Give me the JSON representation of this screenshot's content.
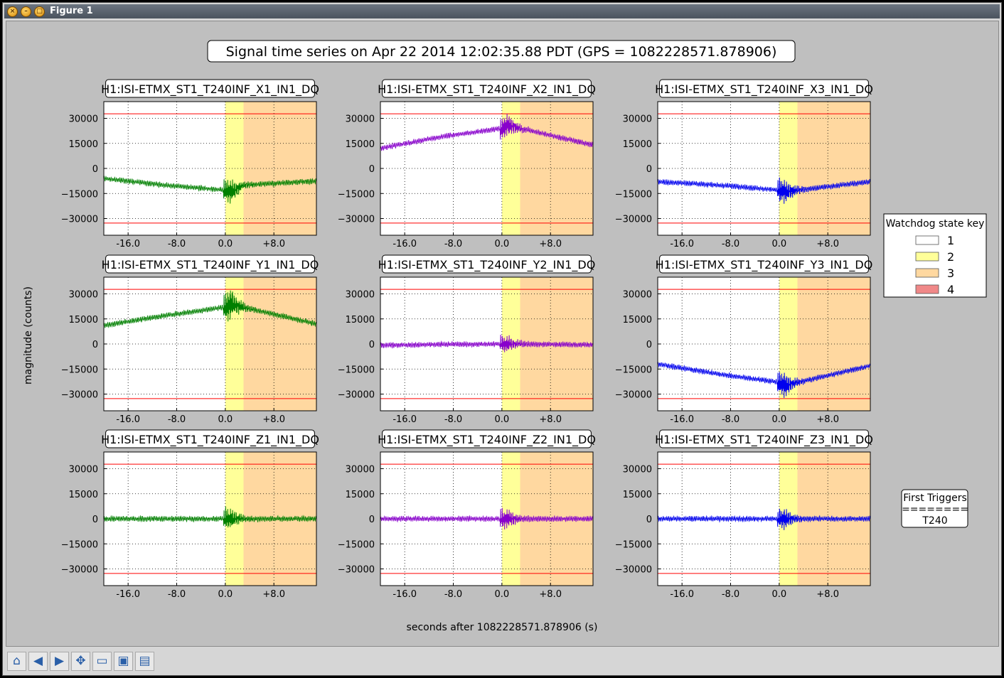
{
  "window": {
    "title": "Figure 1"
  },
  "toolbar": {
    "buttons": [
      {
        "name": "home-icon",
        "glyph": "⌂"
      },
      {
        "name": "back-icon",
        "glyph": "◀"
      },
      {
        "name": "forward-icon",
        "glyph": "▶"
      },
      {
        "name": "pan-icon",
        "glyph": "✥"
      },
      {
        "name": "zoom-icon",
        "glyph": "▭"
      },
      {
        "name": "configure-subplots-icon",
        "glyph": "▣"
      },
      {
        "name": "save-icon",
        "glyph": "▤"
      }
    ]
  },
  "figure": {
    "suptitle": "Signal time series on Apr 22 2014 12:02:35.88 PDT (GPS = 1082228571.878906)",
    "ylabel": "magnitude (counts)",
    "xlabel": "seconds after 1082228571.878906 (s)",
    "legend": {
      "title": "Watchdog state key",
      "entries": [
        {
          "label": "1",
          "color": "#ffffff"
        },
        {
          "label": "2",
          "color": "#ffff99"
        },
        {
          "label": "3",
          "color": "#ffd8a0"
        },
        {
          "label": "4",
          "color": "#f08888"
        }
      ]
    },
    "first_triggers": {
      "title": "First Triggers",
      "separator": "========",
      "value": "T240"
    }
  },
  "chart_data": [
    {
      "type": "line",
      "title": "H1:ISI-ETMX_ST1_T240INF_X1_IN1_DQ",
      "color": "#008000",
      "xlim": [
        -20,
        15
      ],
      "ylim": [
        -40000,
        40000
      ],
      "xticks": [
        "-16.0",
        "-8.0",
        "0.0",
        "+8.0"
      ],
      "yticks": [
        "30000",
        "15000",
        "0",
        "−15000",
        "−30000"
      ],
      "threshold": [
        32700,
        -32700
      ],
      "state_bands": [
        {
          "state": 2,
          "x": [
            0,
            3
          ]
        },
        {
          "state": 3,
          "x": [
            3,
            15
          ]
        }
      ],
      "x": [
        -20,
        -10,
        0,
        1,
        3,
        15
      ],
      "y": [
        -6000,
        -10000,
        -13000,
        -14000,
        -10000,
        -7500
      ],
      "burst_amplitude": 7000
    },
    {
      "type": "line",
      "title": "H1:ISI-ETMX_ST1_T240INF_X2_IN1_DQ",
      "color": "#8800cc",
      "xlim": [
        -20,
        15
      ],
      "ylim": [
        -40000,
        40000
      ],
      "xticks": [
        "-16.0",
        "-8.0",
        "0.0",
        "+8.0"
      ],
      "yticks": [
        "30000",
        "15000",
        "0",
        "−15000",
        "−30000"
      ],
      "threshold": [
        32700,
        -32700
      ],
      "state_bands": [
        {
          "state": 2,
          "x": [
            0,
            3
          ]
        },
        {
          "state": 3,
          "x": [
            3,
            15
          ]
        }
      ],
      "x": [
        -20,
        -10,
        0,
        1,
        3,
        15
      ],
      "y": [
        12000,
        19000,
        24000,
        26000,
        24000,
        14000
      ],
      "burst_amplitude": 7500
    },
    {
      "type": "line",
      "title": "H1:ISI-ETMX_ST1_T240INF_X3_IN1_DQ",
      "color": "#0000ee",
      "xlim": [
        -20,
        15
      ],
      "ylim": [
        -40000,
        40000
      ],
      "xticks": [
        "-16.0",
        "-8.0",
        "0.0",
        "+8.0"
      ],
      "yticks": [
        "30000",
        "15000",
        "0",
        "−15000",
        "−30000"
      ],
      "threshold": [
        32700,
        -32700
      ],
      "state_bands": [
        {
          "state": 2,
          "x": [
            0,
            3
          ]
        },
        {
          "state": 3,
          "x": [
            3,
            15
          ]
        }
      ],
      "x": [
        -20,
        -10,
        0,
        1,
        3,
        15
      ],
      "y": [
        -8000,
        -10000,
        -13000,
        -14000,
        -13000,
        -8000
      ],
      "burst_amplitude": 7500
    },
    {
      "type": "line",
      "title": "H1:ISI-ETMX_ST1_T240INF_Y1_IN1_DQ",
      "color": "#008000",
      "xlim": [
        -20,
        15
      ],
      "ylim": [
        -40000,
        40000
      ],
      "xticks": [
        "-16.0",
        "-8.0",
        "0.0",
        "+8.0"
      ],
      "yticks": [
        "30000",
        "15000",
        "0",
        "−15000",
        "−30000"
      ],
      "threshold": [
        32700,
        -32700
      ],
      "state_bands": [
        {
          "state": 2,
          "x": [
            0,
            3
          ]
        },
        {
          "state": 3,
          "x": [
            3,
            15
          ]
        }
      ],
      "x": [
        -20,
        -10,
        0,
        1,
        3,
        15
      ],
      "y": [
        11000,
        17000,
        22000,
        24000,
        22000,
        12000
      ],
      "burst_amplitude": 9000
    },
    {
      "type": "line",
      "title": "H1:ISI-ETMX_ST1_T240INF_Y2_IN1_DQ",
      "color": "#8800cc",
      "xlim": [
        -20,
        15
      ],
      "ylim": [
        -40000,
        40000
      ],
      "xticks": [
        "-16.0",
        "-8.0",
        "0.0",
        "+8.0"
      ],
      "yticks": [
        "30000",
        "15000",
        "0",
        "−15000",
        "−30000"
      ],
      "threshold": [
        32700,
        -32700
      ],
      "state_bands": [
        {
          "state": 2,
          "x": [
            0,
            3
          ]
        },
        {
          "state": 3,
          "x": [
            3,
            15
          ]
        }
      ],
      "x": [
        -20,
        -10,
        0,
        1,
        3,
        15
      ],
      "y": [
        -800,
        -300,
        0,
        0,
        0,
        -500
      ],
      "burst_amplitude": 5000
    },
    {
      "type": "line",
      "title": "H1:ISI-ETMX_ST1_T240INF_Y3_IN1_DQ",
      "color": "#0000ee",
      "xlim": [
        -20,
        15
      ],
      "ylim": [
        -40000,
        40000
      ],
      "xticks": [
        "-16.0",
        "-8.0",
        "0.0",
        "+8.0"
      ],
      "yticks": [
        "30000",
        "15000",
        "0",
        "−15000",
        "−30000"
      ],
      "threshold": [
        32700,
        -32700
      ],
      "state_bands": [
        {
          "state": 2,
          "x": [
            0,
            3
          ]
        },
        {
          "state": 3,
          "x": [
            3,
            15
          ]
        }
      ],
      "x": [
        -20,
        -10,
        0,
        1,
        3,
        15
      ],
      "y": [
        -12000,
        -18000,
        -23000,
        -25000,
        -23000,
        -13000
      ],
      "burst_amplitude": 8000
    },
    {
      "type": "line",
      "title": "H1:ISI-ETMX_ST1_T240INF_Z1_IN1_DQ",
      "color": "#008000",
      "xlim": [
        -20,
        15
      ],
      "ylim": [
        -40000,
        40000
      ],
      "xticks": [
        "-16.0",
        "-8.0",
        "0.0",
        "+8.0"
      ],
      "yticks": [
        "30000",
        "15000",
        "0",
        "−15000",
        "−30000"
      ],
      "threshold": [
        32700,
        -32700
      ],
      "state_bands": [
        {
          "state": 2,
          "x": [
            0,
            3
          ]
        },
        {
          "state": 3,
          "x": [
            3,
            15
          ]
        }
      ],
      "x": [
        -20,
        -10,
        0,
        1,
        3,
        15
      ],
      "y": [
        0,
        0,
        0,
        0,
        0,
        0
      ],
      "burst_amplitude": 6500
    },
    {
      "type": "line",
      "title": "H1:ISI-ETMX_ST1_T240INF_Z2_IN1_DQ",
      "color": "#8800cc",
      "xlim": [
        -20,
        15
      ],
      "ylim": [
        -40000,
        40000
      ],
      "xticks": [
        "-16.0",
        "-8.0",
        "0.0",
        "+8.0"
      ],
      "yticks": [
        "30000",
        "15000",
        "0",
        "−15000",
        "−30000"
      ],
      "threshold": [
        32700,
        -32700
      ],
      "state_bands": [
        {
          "state": 2,
          "x": [
            0,
            3
          ]
        },
        {
          "state": 3,
          "x": [
            3,
            15
          ]
        }
      ],
      "x": [
        -20,
        -10,
        0,
        1,
        3,
        15
      ],
      "y": [
        0,
        0,
        0,
        0,
        0,
        0
      ],
      "burst_amplitude": 6000
    },
    {
      "type": "line",
      "title": "H1:ISI-ETMX_ST1_T240INF_Z3_IN1_DQ",
      "color": "#0000ee",
      "xlim": [
        -20,
        15
      ],
      "ylim": [
        -40000,
        40000
      ],
      "xticks": [
        "-16.0",
        "-8.0",
        "0.0",
        "+8.0"
      ],
      "yticks": [
        "30000",
        "15000",
        "0",
        "−15000",
        "−30000"
      ],
      "threshold": [
        32700,
        -32700
      ],
      "state_bands": [
        {
          "state": 2,
          "x": [
            0,
            3
          ]
        },
        {
          "state": 3,
          "x": [
            3,
            15
          ]
        }
      ],
      "x": [
        -20,
        -10,
        0,
        1,
        3,
        15
      ],
      "y": [
        0,
        0,
        0,
        0,
        0,
        0
      ],
      "burst_amplitude": 6000
    }
  ]
}
